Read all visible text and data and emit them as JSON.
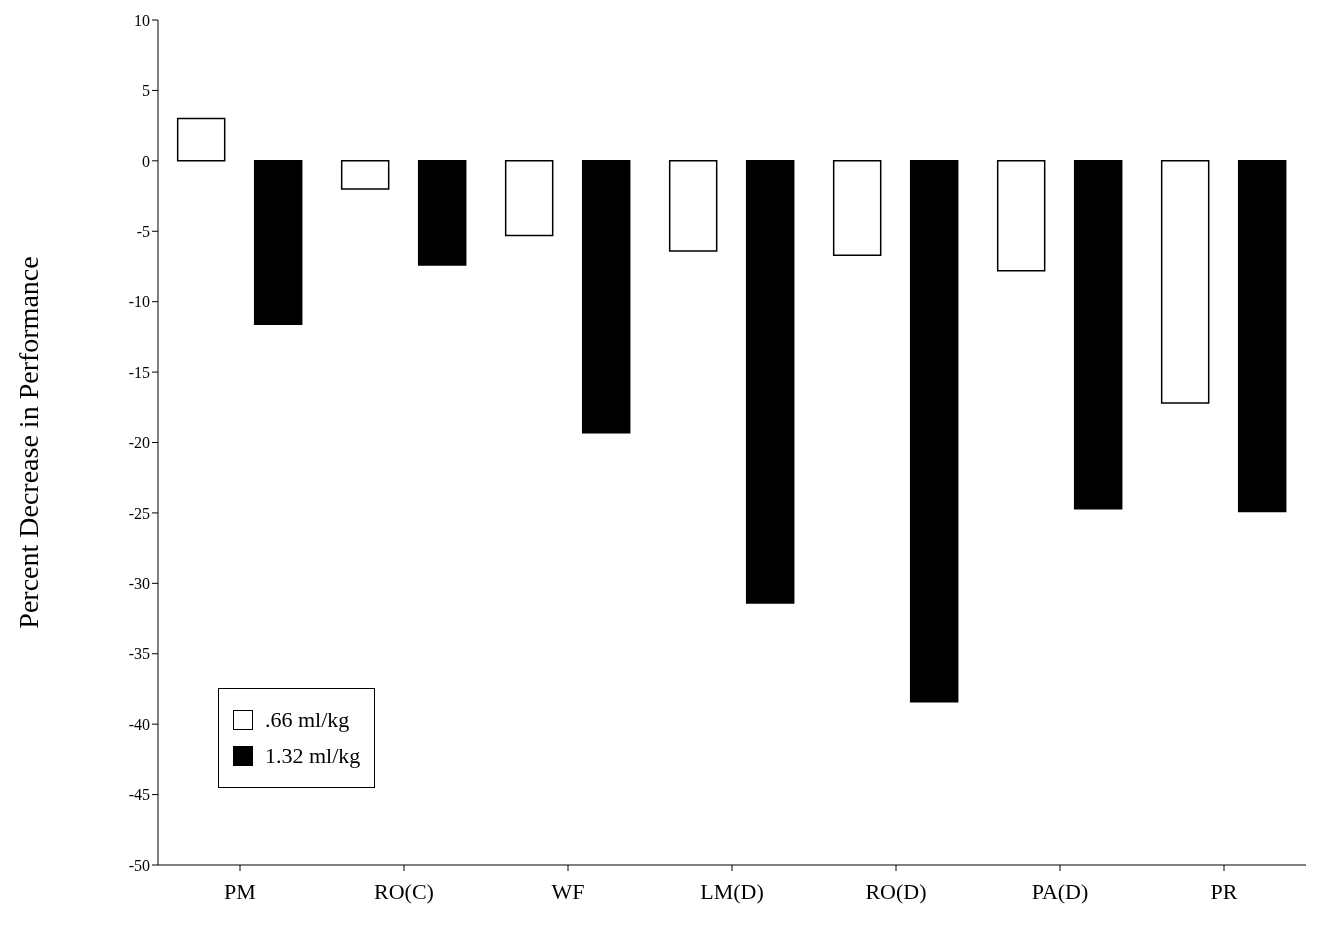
{
  "chart_data": {
    "type": "bar",
    "ylabel": "Percent Decrease in Performance",
    "categories": [
      "PM",
      "RO(C)",
      "WF",
      "LM(D)",
      "RO(D)",
      "PA(D)",
      "PR"
    ],
    "series": [
      {
        "name": ".66 ml/kg",
        "color": "#ffffff",
        "values": [
          3.0,
          -2.0,
          -5.3,
          -6.4,
          -6.7,
          -7.8,
          -17.2
        ]
      },
      {
        "name": "1.32 ml/kg",
        "color": "#000000",
        "values": [
          -11.6,
          -7.4,
          -19.3,
          -31.4,
          -38.4,
          -24.7,
          -24.9
        ]
      }
    ],
    "ylim": [
      -50,
      10
    ],
    "yticks": [
      -50,
      -45,
      -40,
      -35,
      -30,
      -25,
      -20,
      -15,
      -10,
      -5,
      0,
      5,
      10
    ],
    "grid": false,
    "legend": "bottom left"
  }
}
